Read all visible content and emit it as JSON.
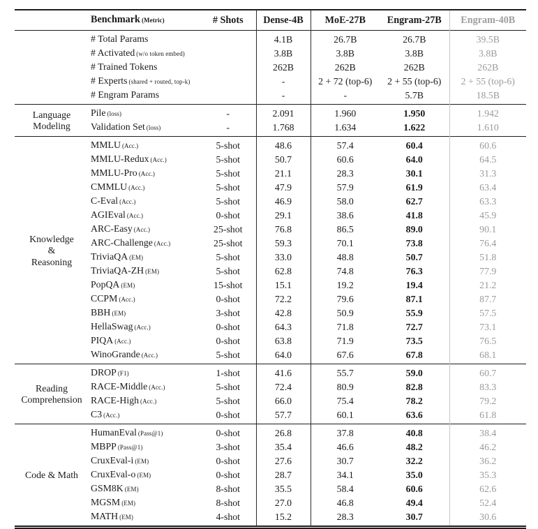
{
  "colors": {
    "text": "#1b1b1b",
    "muted_column_text": "#9b9b9b",
    "rule_dark": "#1c1c1c",
    "rule_light": "#c8c8c8"
  },
  "table": {
    "header": {
      "benchmark": "Benchmark",
      "benchmark_metric": "(Metric)",
      "shots": "# Shots",
      "models": [
        "Dense-4B",
        "MoE-27B",
        "Engram-27B",
        "Engram-40B"
      ]
    },
    "sections": [
      {
        "label_lines": [],
        "rows": [
          {
            "name": "# Total Params",
            "metric": "",
            "shots": "",
            "values": [
              "4.1B",
              "26.7B",
              "26.7B",
              "39.5B"
            ]
          },
          {
            "name": "# Activated",
            "metric": "(w/o token embed)",
            "shots": "",
            "values": [
              "3.8B",
              "3.8B",
              "3.8B",
              "3.8B"
            ]
          },
          {
            "name": "# Trained Tokens",
            "metric": "",
            "shots": "",
            "values": [
              "262B",
              "262B",
              "262B",
              "262B"
            ]
          },
          {
            "name": "# Experts",
            "metric": "(shared + routed, top-k)",
            "shots": "",
            "values": [
              "-",
              "2 + 72 (top-6)",
              "2 + 55 (top-6)",
              "2 + 55 (top-6)"
            ]
          },
          {
            "name": "# Engram Params",
            "metric": "",
            "shots": "",
            "values": [
              "-",
              "-",
              "5.7B",
              "18.5B"
            ]
          }
        ]
      },
      {
        "label_lines": [
          "Language",
          "Modeling"
        ],
        "rows": [
          {
            "name": "Pile",
            "metric": "(loss)",
            "shots": "-",
            "values": [
              "2.091",
              "1.960",
              "1.950",
              "1.942"
            ]
          },
          {
            "name": "Validation Set",
            "metric": "(loss)",
            "shots": "-",
            "values": [
              "1.768",
              "1.634",
              "1.622",
              "1.610"
            ]
          }
        ]
      },
      {
        "label_lines": [
          "Knowledge",
          "&",
          "Reasoning"
        ],
        "rows": [
          {
            "name": "MMLU",
            "metric": "(Acc.)",
            "shots": "5-shot",
            "values": [
              "48.6",
              "57.4",
              "60.4",
              "60.6"
            ]
          },
          {
            "name": "MMLU-Redux",
            "metric": "(Acc.)",
            "shots": "5-shot",
            "values": [
              "50.7",
              "60.6",
              "64.0",
              "64.5"
            ]
          },
          {
            "name": "MMLU-Pro",
            "metric": "(Acc.)",
            "shots": "5-shot",
            "values": [
              "21.1",
              "28.3",
              "30.1",
              "31.3"
            ]
          },
          {
            "name": "CMMLU",
            "metric": "(Acc.)",
            "shots": "5-shot",
            "values": [
              "47.9",
              "57.9",
              "61.9",
              "63.4"
            ]
          },
          {
            "name": "C-Eval",
            "metric": "(Acc.)",
            "shots": "5-shot",
            "values": [
              "46.9",
              "58.0",
              "62.7",
              "63.3"
            ]
          },
          {
            "name": "AGIEval",
            "metric": "(Acc.)",
            "shots": "0-shot",
            "values": [
              "29.1",
              "38.6",
              "41.8",
              "45.9"
            ]
          },
          {
            "name": "ARC-Easy",
            "metric": "(Acc.)",
            "shots": "25-shot",
            "values": [
              "76.8",
              "86.5",
              "89.0",
              "90.1"
            ]
          },
          {
            "name": "ARC-Challenge",
            "metric": "(Acc.)",
            "shots": "25-shot",
            "values": [
              "59.3",
              "70.1",
              "73.8",
              "76.4"
            ]
          },
          {
            "name": "TriviaQA",
            "metric": "(EM)",
            "shots": "5-shot",
            "values": [
              "33.0",
              "48.8",
              "50.7",
              "51.8"
            ]
          },
          {
            "name": "TriviaQA-ZH",
            "metric": "(EM)",
            "shots": "5-shot",
            "values": [
              "62.8",
              "74.8",
              "76.3",
              "77.9"
            ]
          },
          {
            "name": "PopQA",
            "metric": "(EM)",
            "shots": "15-shot",
            "values": [
              "15.1",
              "19.2",
              "19.4",
              "21.2"
            ]
          },
          {
            "name": "CCPM",
            "metric": "(Acc.)",
            "shots": "0-shot",
            "values": [
              "72.2",
              "79.6",
              "87.1",
              "87.7"
            ]
          },
          {
            "name": "BBH",
            "metric": "(EM)",
            "shots": "3-shot",
            "values": [
              "42.8",
              "50.9",
              "55.9",
              "57.5"
            ]
          },
          {
            "name": "HellaSwag",
            "metric": "(Acc.)",
            "shots": "0-shot",
            "values": [
              "64.3",
              "71.8",
              "72.7",
              "73.1"
            ]
          },
          {
            "name": "PIQA",
            "metric": "(Acc.)",
            "shots": "0-shot",
            "values": [
              "63.8",
              "71.9",
              "73.5",
              "76.5"
            ]
          },
          {
            "name": "WinoGrande",
            "metric": "(Acc.)",
            "shots": "5-shot",
            "values": [
              "64.0",
              "67.6",
              "67.8",
              "68.1"
            ]
          }
        ]
      },
      {
        "label_lines": [
          "Reading",
          "Comprehension"
        ],
        "rows": [
          {
            "name": "DROP",
            "metric": "(F1)",
            "shots": "1-shot",
            "values": [
              "41.6",
              "55.7",
              "59.0",
              "60.7"
            ]
          },
          {
            "name": "RACE-Middle",
            "metric": "(Acc.)",
            "shots": "5-shot",
            "values": [
              "72.4",
              "80.9",
              "82.8",
              "83.3"
            ]
          },
          {
            "name": "RACE-High",
            "metric": "(Acc.)",
            "shots": "5-shot",
            "values": [
              "66.0",
              "75.4",
              "78.2",
              "79.2"
            ]
          },
          {
            "name": "C3",
            "metric": "(Acc.)",
            "shots": "0-shot",
            "values": [
              "57.7",
              "60.1",
              "63.6",
              "61.8"
            ]
          }
        ]
      },
      {
        "label_lines": [
          "Code & Math"
        ],
        "rows": [
          {
            "name": "HumanEval",
            "metric": "(Pass@1)",
            "shots": "0-shot",
            "values": [
              "26.8",
              "37.8",
              "40.8",
              "38.4"
            ]
          },
          {
            "name": "MBPP",
            "metric": "(Pass@1)",
            "shots": "3-shot",
            "values": [
              "35.4",
              "46.6",
              "48.2",
              "46.2"
            ]
          },
          {
            "name": "CruxEval-i",
            "metric": "(EM)",
            "shots": "0-shot",
            "values": [
              "27.6",
              "30.7",
              "32.2",
              "36.2"
            ]
          },
          {
            "name": "CruxEval-o",
            "metric": "(EM)",
            "shots": "0-shot",
            "values": [
              "28.7",
              "34.1",
              "35.0",
              "35.3"
            ]
          },
          {
            "name": "GSM8K",
            "metric": "(EM)",
            "shots": "8-shot",
            "values": [
              "35.5",
              "58.4",
              "60.6",
              "62.6"
            ]
          },
          {
            "name": "MGSM",
            "metric": "(EM)",
            "shots": "8-shot",
            "values": [
              "27.0",
              "46.8",
              "49.4",
              "52.4"
            ]
          },
          {
            "name": "MATH",
            "metric": "(EM)",
            "shots": "4-shot",
            "values": [
              "15.2",
              "28.3",
              "30.7",
              "30.6"
            ]
          }
        ]
      }
    ]
  }
}
